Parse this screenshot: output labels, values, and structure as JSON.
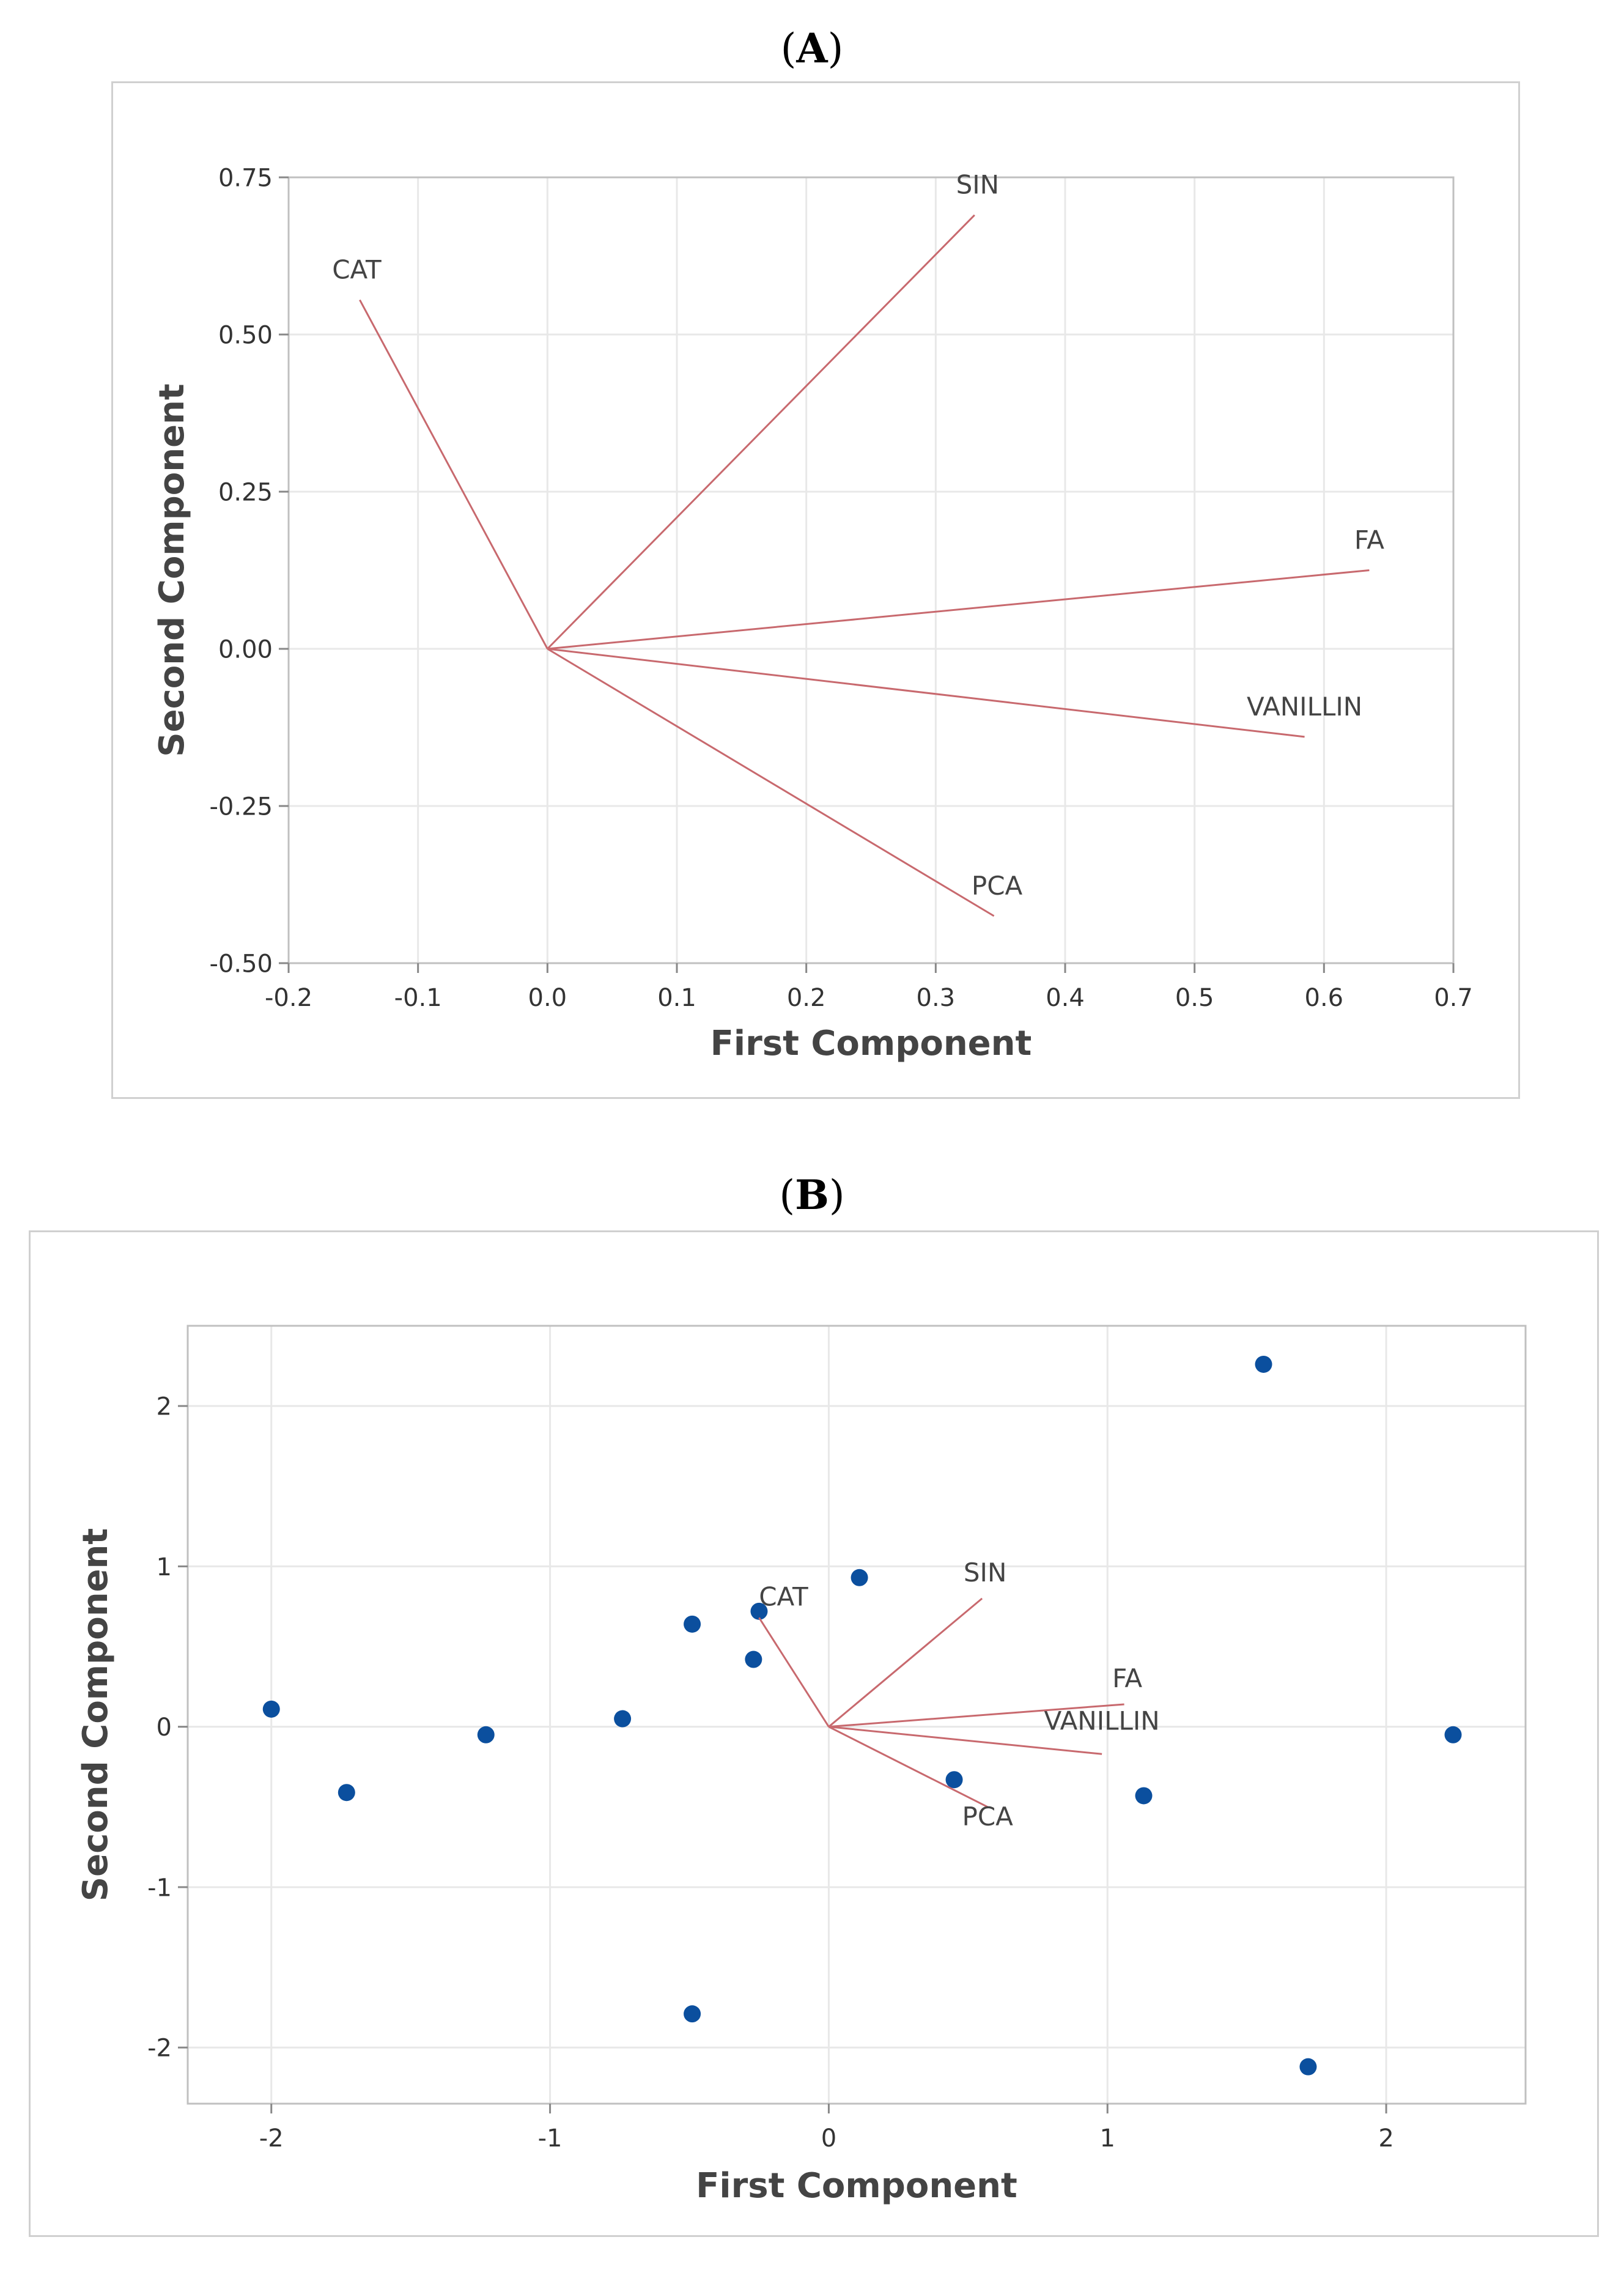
{
  "figure": {
    "panels": [
      {
        "label_open": "(",
        "label_letter": "A",
        "label_close": ")"
      },
      {
        "label_open": "(",
        "label_letter": "B",
        "label_close": ")"
      }
    ]
  },
  "colors": {
    "loading_line": "#c8696e",
    "point": "#0b4f9e",
    "grid": "#e8e8e8",
    "frame": "#c0c0c0",
    "text": "#333333"
  },
  "chart_data": [
    {
      "type": "line",
      "title": "",
      "xlabel": "First Component",
      "ylabel": "Second Component",
      "xlim": [
        -0.2,
        0.7
      ],
      "ylim": [
        -0.5,
        0.75
      ],
      "xticks": [
        -0.2,
        -0.1,
        0.0,
        0.1,
        0.2,
        0.3,
        0.4,
        0.5,
        0.6,
        0.7
      ],
      "xtick_labels": [
        "-0.2",
        "-0.1",
        "0.0",
        "0.1",
        "0.2",
        "0.3",
        "0.4",
        "0.5",
        "0.6",
        "0.7"
      ],
      "yticks": [
        0.75,
        0.5,
        0.25,
        0.0,
        -0.25,
        -0.5
      ],
      "ytick_labels": [
        "0.75",
        "0.50",
        "0.25",
        "0.00",
        "-0.25",
        "-0.50"
      ],
      "grid": true,
      "vectors": [
        {
          "name": "CAT",
          "x": -0.145,
          "y": 0.555
        },
        {
          "name": "SIN",
          "x": 0.33,
          "y": 0.69
        },
        {
          "name": "FA",
          "x": 0.635,
          "y": 0.125
        },
        {
          "name": "VANILLIN",
          "x": 0.585,
          "y": -0.14
        },
        {
          "name": "PCA",
          "x": 0.345,
          "y": -0.425
        }
      ]
    },
    {
      "type": "scatter",
      "title": "",
      "xlabel": "First Component",
      "ylabel": "Second Component",
      "xlim": [
        -2.3,
        2.5
      ],
      "ylim": [
        -2.35,
        2.5
      ],
      "xticks": [
        -2,
        -1,
        0,
        1,
        2
      ],
      "xtick_labels": [
        "-2",
        "-1",
        "0",
        "1",
        "2"
      ],
      "yticks": [
        2,
        1,
        0,
        -1,
        -2
      ],
      "ytick_labels": [
        "2",
        "1",
        "0",
        "-1",
        "-2"
      ],
      "grid": true,
      "points": [
        {
          "x": -2.0,
          "y": 0.11
        },
        {
          "x": -1.73,
          "y": -0.41
        },
        {
          "x": -1.23,
          "y": -0.05
        },
        {
          "x": -0.74,
          "y": 0.05
        },
        {
          "x": -0.49,
          "y": 0.64
        },
        {
          "x": -0.49,
          "y": -1.79
        },
        {
          "x": -0.27,
          "y": 0.42
        },
        {
          "x": -0.25,
          "y": 0.72
        },
        {
          "x": 0.11,
          "y": 0.93
        },
        {
          "x": 0.45,
          "y": -0.33
        },
        {
          "x": 1.13,
          "y": -0.43
        },
        {
          "x": 1.56,
          "y": 2.26
        },
        {
          "x": 1.72,
          "y": -2.12
        },
        {
          "x": 2.24,
          "y": -0.05
        }
      ],
      "vectors": [
        {
          "name": "CAT",
          "x": -0.25,
          "y": 0.68
        },
        {
          "name": "SIN",
          "x": 0.55,
          "y": 0.8
        },
        {
          "name": "FA",
          "x": 1.06,
          "y": 0.14
        },
        {
          "name": "VANILLIN",
          "x": 0.98,
          "y": -0.17
        },
        {
          "name": "PCA",
          "x": 0.57,
          "y": -0.5
        }
      ]
    }
  ]
}
